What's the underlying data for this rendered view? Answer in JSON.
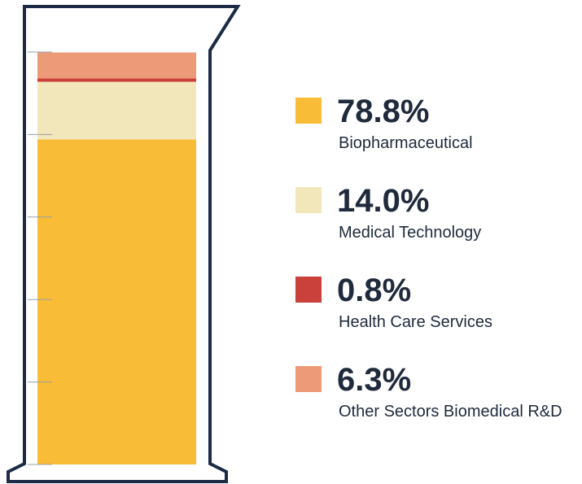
{
  "chart_data": {
    "type": "bar",
    "stacked": true,
    "series": [
      {
        "name": "Biopharmaceutical",
        "color": "#f9bc36",
        "values": [
          78.8
        ],
        "value_labels": [
          "78.8%"
        ]
      },
      {
        "name": "Medical Technology",
        "color": "#f2e6bb",
        "values": [
          14.0
        ],
        "value_labels": [
          "14.0%"
        ]
      },
      {
        "name": "Health Care Services",
        "color": "#c9413a",
        "values": [
          0.8
        ],
        "value_labels": [
          "0.8%"
        ]
      },
      {
        "name": "Other Sectors Biomedical R&D",
        "color": "#ec9a77",
        "values": [
          6.3
        ],
        "value_labels": [
          "6.3%"
        ]
      }
    ],
    "ylim": [
      0,
      100
    ],
    "yticks": [
      0,
      20,
      40,
      60,
      80,
      100
    ]
  }
}
